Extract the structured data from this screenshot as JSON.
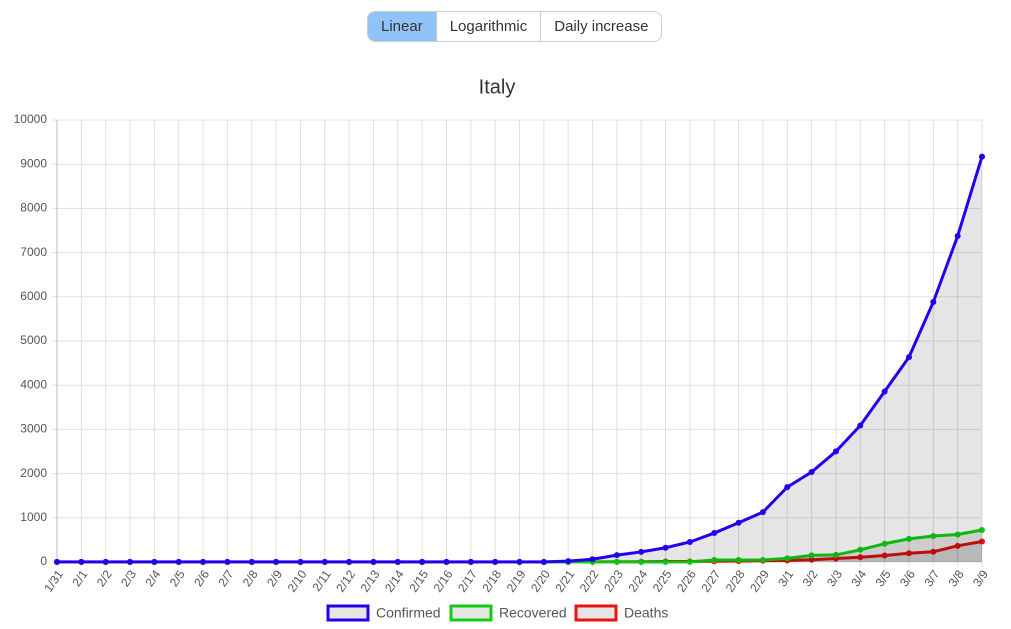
{
  "toolbar": {
    "buttons": [
      "Linear",
      "Logarithmic",
      "Daily increase"
    ],
    "active": 0
  },
  "chart_data": {
    "type": "line",
    "title": "Italy",
    "categories": [
      "1/31",
      "2/1",
      "2/2",
      "2/3",
      "2/4",
      "2/5",
      "2/6",
      "2/7",
      "2/8",
      "2/9",
      "2/10",
      "2/11",
      "2/12",
      "2/13",
      "2/14",
      "2/15",
      "2/16",
      "2/17",
      "2/18",
      "2/19",
      "2/20",
      "2/21",
      "2/22",
      "2/23",
      "2/24",
      "2/25",
      "2/26",
      "2/27",
      "2/28",
      "2/29",
      "3/1",
      "3/2",
      "3/3",
      "3/4",
      "3/5",
      "3/6",
      "3/7",
      "3/8",
      "3/9"
    ],
    "series": [
      {
        "name": "Confirmed",
        "color": "#2200ee",
        "fill": "rgba(0,0,0,0.1)",
        "values": [
          2,
          2,
          2,
          2,
          2,
          2,
          2,
          3,
          3,
          3,
          3,
          3,
          3,
          3,
          3,
          3,
          3,
          3,
          3,
          3,
          3,
          20,
          62,
          155,
          229,
          322,
          453,
          655,
          888,
          1128,
          1694,
          2036,
          2502,
          3089,
          3858,
          4636,
          5883,
          7375,
          9172
        ]
      },
      {
        "name": "Recovered",
        "color": "#11cc11",
        "fill": "rgba(0,0,0,0.1)",
        "values": [
          0,
          0,
          0,
          0,
          0,
          0,
          0,
          0,
          0,
          0,
          0,
          0,
          0,
          0,
          0,
          0,
          0,
          0,
          0,
          0,
          0,
          0,
          1,
          2,
          1,
          1,
          3,
          45,
          46,
          46,
          83,
          149,
          160,
          276,
          414,
          523,
          589,
          622,
          724
        ]
      },
      {
        "name": "Deaths",
        "color": "#ee1111",
        "fill": "rgba(0,0,0,0.1)",
        "values": [
          0,
          0,
          0,
          0,
          0,
          0,
          0,
          0,
          0,
          0,
          0,
          0,
          0,
          0,
          0,
          0,
          0,
          0,
          0,
          0,
          0,
          1,
          2,
          3,
          7,
          10,
          12,
          17,
          21,
          29,
          34,
          52,
          79,
          107,
          148,
          197,
          233,
          366,
          463
        ]
      }
    ],
    "ylim": [
      0,
      10000
    ],
    "yticks": [
      0,
      1000,
      2000,
      3000,
      4000,
      5000,
      6000,
      7000,
      8000,
      9000,
      10000
    ],
    "log_scale": false,
    "grid": true,
    "legend": "bottom"
  }
}
